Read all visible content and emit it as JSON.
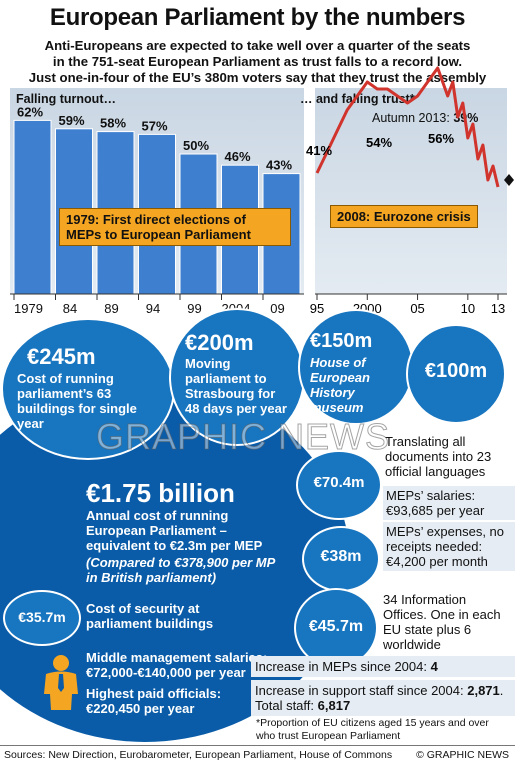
{
  "title": "European Parliament by the numbers",
  "subtitle_lines": [
    "Anti-Europeans are expected to take well over a quarter of the seats",
    "in the 751-seat European Parliament as trust falls to a record low.",
    "Just one-in-four of the EU’s 380m voters say that they trust the assembly"
  ],
  "chart_data": [
    {
      "type": "bar",
      "title": "Falling turnout…",
      "categories": [
        "1979",
        "84",
        "89",
        "94",
        "99",
        "2004",
        "09"
      ],
      "values": [
        62,
        59,
        58,
        57,
        50,
        46,
        43
      ],
      "value_labels": [
        "62%",
        "59%",
        "58%",
        "57%",
        "50%",
        "46%",
        "43%"
      ],
      "annotation": "1979: First direct elections of MEPs to European Parliament",
      "colors": {
        "bar": "#3f7fcf",
        "background": "#d3dde8"
      }
    },
    {
      "type": "line",
      "title": "… and falling trust*",
      "x_ticks": [
        "95",
        "2000",
        "05",
        "10",
        "13"
      ],
      "series": [
        {
          "x": [
            1995,
            1996,
            1997,
            1998,
            1999,
            2000,
            2001,
            2002,
            2003,
            2004,
            2005,
            2006,
            2007,
            2008,
            2008.5,
            2009,
            2009.5,
            2010,
            2010.5,
            2011,
            2011.5,
            2012,
            2012.5,
            2013
          ],
          "y": [
            41,
            44,
            47,
            50,
            52,
            54,
            53,
            53,
            52,
            51,
            52,
            54,
            56,
            52,
            54,
            49,
            51,
            46,
            48,
            43,
            45,
            40,
            42,
            39
          ]
        }
      ],
      "labels": {
        "start": "41%",
        "peak_2000": "54%",
        "peak_2007": "56%",
        "latest": "Autumn 2013:",
        "latest_value": "39%"
      },
      "annotation": "2008: Eurozone crisis",
      "colors": {
        "line": "#d0342c"
      }
    }
  ],
  "costs": {
    "c245": {
      "amount": "€245m",
      "text": "Cost of running parliament’s 63 buildings for single year"
    },
    "c200": {
      "amount": "€200m",
      "text": "Moving parliament to Strasbourg for 48 days per year"
    },
    "c150": {
      "amount": "€150m",
      "text": "House of European History museum"
    },
    "c100": {
      "amount": "€100m",
      "text": "Translating all documents into 23 official languages"
    },
    "total": {
      "amount": "€1.75 billion",
      "text": "Annual cost of running European Parliament – equivalent to €2.3m per MEP",
      "note": "(Compared to €378,900 per MP in British parliament)"
    },
    "c70": {
      "amount": "€70.4m",
      "text": "MEPs’ salaries: €93,685 per year"
    },
    "c38": {
      "amount": "€38m",
      "text": "MEPs’ expenses, no receipts needed: €4,200 per month"
    },
    "c45": {
      "amount": "€45.7m",
      "text": "34 Information Offices. One in each EU state plus 6 worldwide"
    },
    "c35": {
      "amount": "€35.7m",
      "text": "Cost of security at parliament buildings"
    },
    "salaries": {
      "middle": "Middle management salaries: €72,000-€140,000 per year",
      "top": "Highest paid officials: €220,450 per year"
    }
  },
  "stats": {
    "meps_label": "Increase in MEPs since 2004:",
    "meps_value": "4",
    "staff_label": "Increase in support staff since 2004:",
    "staff_value": "2,871",
    "total_label": ". Total staff:",
    "total_value": "6,817"
  },
  "footnote": "*Proportion of EU citizens aged 15 years and over who trust European Parliament",
  "sources": "Sources: New Direction, Eurobarometer, European Parliament, House of Commons",
  "credit": "© GRAPHIC NEWS",
  "watermark": "GRAPHIC NEWS",
  "colors": {
    "blue": "#1875bf",
    "dark_blue": "#0a4f96",
    "orange": "#f4a521"
  }
}
